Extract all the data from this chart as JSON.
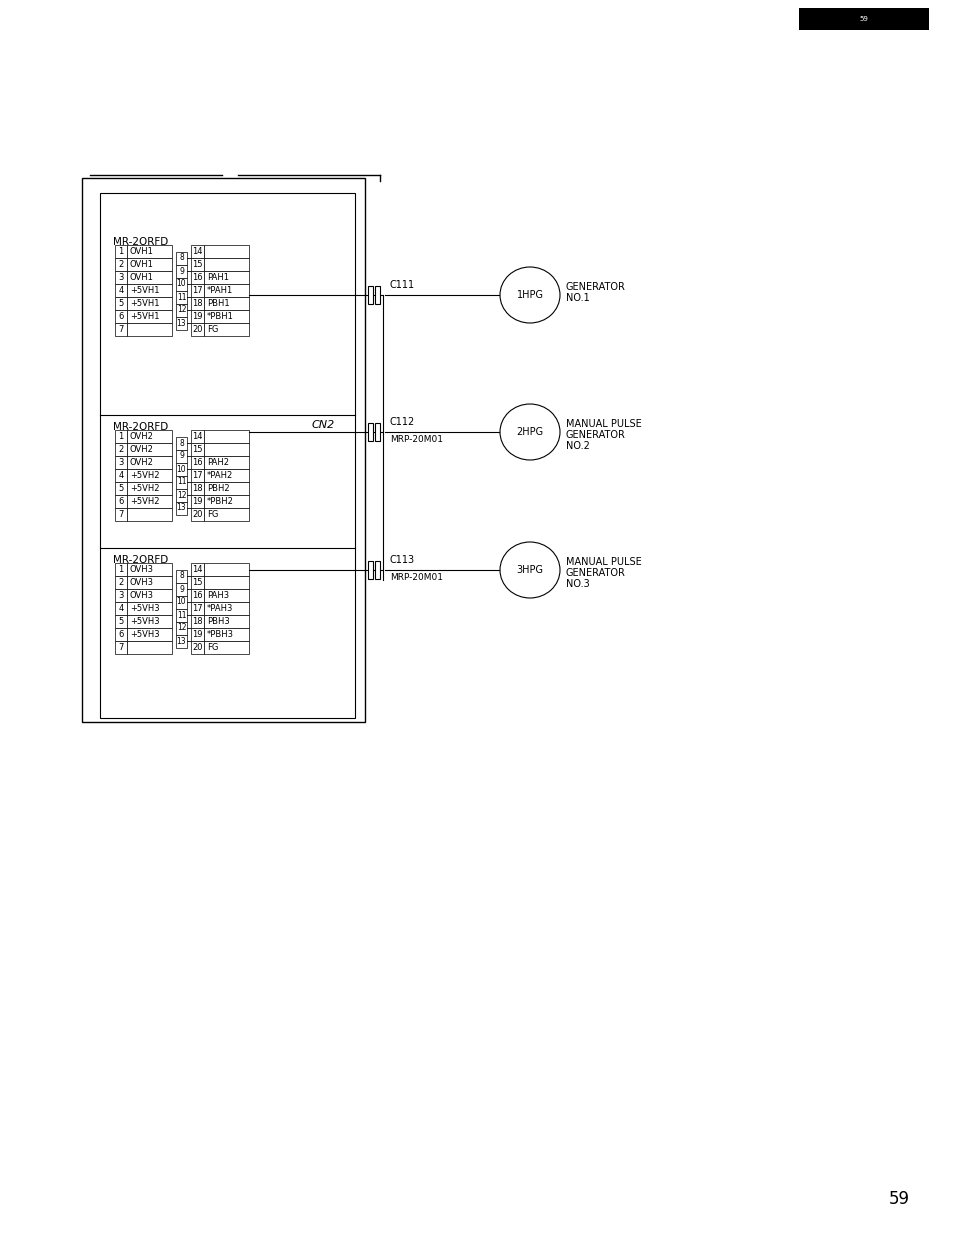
{
  "bg_color": "#ffffff",
  "page_number": "59",
  "fig_w": 9.54,
  "fig_h": 12.34,
  "dpi": 100,
  "modules": [
    {
      "label": "MR-2ORFD",
      "suffix": "1",
      "left_rows": [
        [
          "1",
          "OVH1"
        ],
        [
          "2",
          "OVH1"
        ],
        [
          "3",
          "OVH1"
        ],
        [
          "4",
          "+5VH1"
        ],
        [
          "5",
          "+5VH1"
        ],
        [
          "6",
          "+5VH1"
        ],
        [
          "7",
          ""
        ]
      ],
      "mid_rows": [
        "8",
        "9",
        "10",
        "11",
        "12",
        "13"
      ],
      "right_rows": [
        [
          "14",
          ""
        ],
        [
          "15",
          ""
        ],
        [
          "16",
          "PAH1"
        ],
        [
          "17",
          "*PAH1"
        ],
        [
          "18",
          "PBH1"
        ],
        [
          "19",
          "*PBH1"
        ],
        [
          "20",
          "FG"
        ]
      ],
      "c_label": "C111",
      "c_sub": "",
      "hpg": "1HPG",
      "desc": [
        "GENERATOR",
        "NO.1"
      ]
    },
    {
      "label": "MR-2ORFD",
      "suffix": "2",
      "left_rows": [
        [
          "1",
          "OVH2"
        ],
        [
          "2",
          "OVH2"
        ],
        [
          "3",
          "OVH2"
        ],
        [
          "4",
          "+5VH2"
        ],
        [
          "5",
          "+5VH2"
        ],
        [
          "6",
          "+5VH2"
        ],
        [
          "7",
          ""
        ]
      ],
      "mid_rows": [
        "8",
        "9",
        "10",
        "11",
        "12",
        "13"
      ],
      "right_rows": [
        [
          "14",
          ""
        ],
        [
          "15",
          ""
        ],
        [
          "16",
          "PAH2"
        ],
        [
          "17",
          "*PAH2"
        ],
        [
          "18",
          "PBH2"
        ],
        [
          "19",
          "*PBH2"
        ],
        [
          "20",
          "FG"
        ]
      ],
      "c_label": "C112",
      "c_sub": "MRP-20M01",
      "hpg": "2HPG",
      "desc": [
        "MANUAL PULSE",
        "GENERATOR",
        "NO.2"
      ]
    },
    {
      "label": "MR-2ORFD",
      "suffix": "3",
      "left_rows": [
        [
          "1",
          "OVH3"
        ],
        [
          "2",
          "OVH3"
        ],
        [
          "3",
          "OVH3"
        ],
        [
          "4",
          "+5VH3"
        ],
        [
          "5",
          "+5VH3"
        ],
        [
          "6",
          "+5VH3"
        ],
        [
          "7",
          ""
        ]
      ],
      "mid_rows": [
        "8",
        "9",
        "10",
        "11",
        "12",
        "13"
      ],
      "right_rows": [
        [
          "14",
          ""
        ],
        [
          "15",
          ""
        ],
        [
          "16",
          "PAH3"
        ],
        [
          "17",
          "*PAH3"
        ],
        [
          "18",
          "PBH3"
        ],
        [
          "19",
          "*PBH3"
        ],
        [
          "20",
          "FG"
        ]
      ],
      "c_label": "C113",
      "c_sub": "MRP-20M01",
      "hpg": "3HPG",
      "desc": [
        "MANUAL PULSE",
        "GENERATOR",
        "NO.3"
      ]
    }
  ]
}
